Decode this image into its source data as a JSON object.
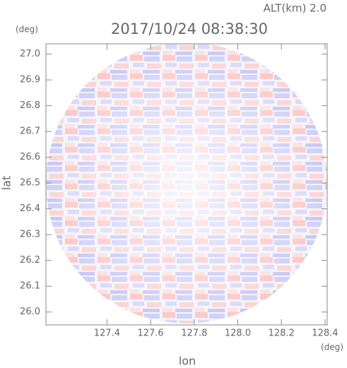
{
  "chart_data": {
    "type": "image",
    "title": "2017/10/24 08:38:30",
    "subtitle": "ALT(km) 2.0",
    "x_label": "lon",
    "y_label": "lat",
    "x_unit": "(deg)",
    "y_unit": "(deg)",
    "xlim": [
      127.12,
      128.41
    ],
    "ylim": [
      25.95,
      27.04
    ],
    "xticks": [
      127.4,
      127.6,
      127.8,
      {
        "value": 128,
        "label": "128.0"
      },
      128.2,
      128.4
    ],
    "yticks": [
      {
        "value": 26,
        "label": "26.0"
      },
      26.1,
      26.2,
      26.3,
      26.4,
      26.5,
      26.6,
      26.7,
      26.8,
      26.9,
      {
        "value": 27,
        "label": "27.0"
      }
    ]
  }
}
